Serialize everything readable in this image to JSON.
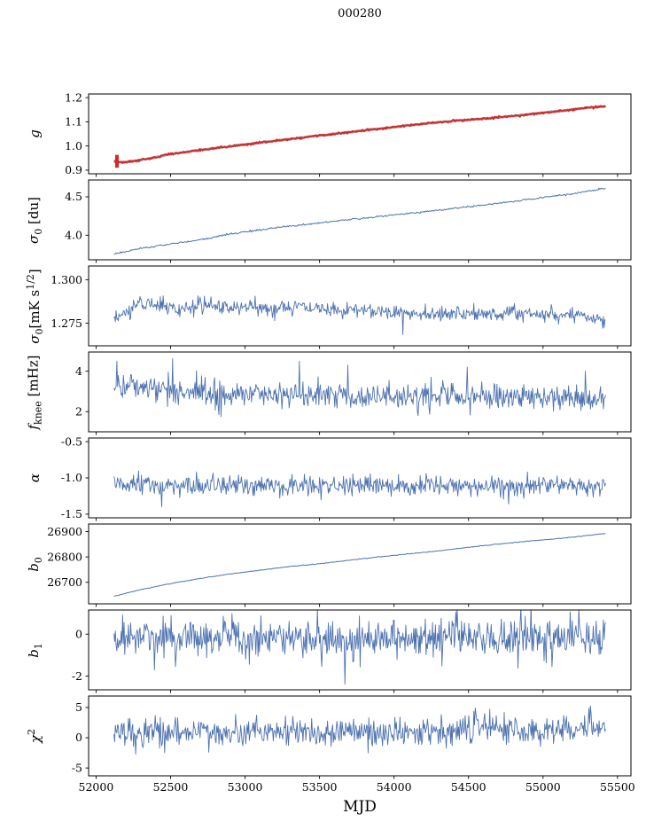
{
  "chart_data": {
    "type": "line",
    "title": "000280",
    "xlabel": "MJD",
    "xlim": [
      51950,
      55590
    ],
    "xticks": [
      52000,
      52500,
      53000,
      53500,
      54000,
      54500,
      55000,
      55500
    ],
    "x_data_range": [
      52120,
      55420
    ],
    "line_color": "#4c72b0",
    "accent_color": "#d62728",
    "panels": [
      {
        "name": "g",
        "ylabel": "*g*",
        "ylim": [
          0.885,
          1.215
        ],
        "yticks": [
          0.9,
          1.0,
          1.1,
          1.2
        ],
        "ytick_labels": [
          "0.9",
          "1.0",
          "1.1",
          "1.2"
        ],
        "errorbar": {
          "x": 52140,
          "y0": 0.91,
          "y1": 0.963,
          "color": "#d62728",
          "width": 4
        },
        "series": [
          {
            "name": "gain-model",
            "color": "#9a9a9a",
            "width": 2.8,
            "n": 450,
            "noise_sigma": 0.0008,
            "seed": 11,
            "trend": [
              [
                52120,
                0.936
              ],
              [
                52180,
                0.932
              ],
              [
                52260,
                0.938
              ],
              [
                52400,
                0.953
              ],
              [
                52500,
                0.967
              ],
              [
                52650,
                0.979
              ],
              [
                52800,
                0.991
              ],
              [
                53000,
                1.006
              ],
              [
                53200,
                1.021
              ],
              [
                53400,
                1.036
              ],
              [
                53600,
                1.05
              ],
              [
                53800,
                1.064
              ],
              [
                54000,
                1.078
              ],
              [
                54200,
                1.092
              ],
              [
                54400,
                1.104
              ],
              [
                54600,
                1.113
              ],
              [
                54800,
                1.124
              ],
              [
                55000,
                1.137
              ],
              [
                55150,
                1.147
              ],
              [
                55300,
                1.158
              ],
              [
                55420,
                1.164
              ]
            ],
            "spikes": []
          },
          {
            "name": "gain-fit",
            "color": "#d62728",
            "width": 1.8,
            "n": 650,
            "noise_sigma": 0.0022,
            "seed": 12,
            "trend": [
              [
                52120,
                0.936
              ],
              [
                52180,
                0.932
              ],
              [
                52260,
                0.938
              ],
              [
                52400,
                0.953
              ],
              [
                52500,
                0.967
              ],
              [
                52650,
                0.979
              ],
              [
                52800,
                0.991
              ],
              [
                53000,
                1.006
              ],
              [
                53200,
                1.021
              ],
              [
                53400,
                1.036
              ],
              [
                53600,
                1.05
              ],
              [
                53800,
                1.064
              ],
              [
                54000,
                1.078
              ],
              [
                54200,
                1.092
              ],
              [
                54400,
                1.104
              ],
              [
                54600,
                1.113
              ],
              [
                54800,
                1.124
              ],
              [
                55000,
                1.137
              ],
              [
                55150,
                1.147
              ],
              [
                55300,
                1.158
              ],
              [
                55420,
                1.164
              ]
            ],
            "spikes": []
          }
        ]
      },
      {
        "name": "sigma0-du",
        "ylabel": "*σ*_{0} [du]",
        "ylim": [
          3.68,
          4.72
        ],
        "yticks": [
          4.0,
          4.5
        ],
        "ytick_labels": [
          "4.0",
          "4.5"
        ],
        "series": [
          {
            "name": "sigma0-du",
            "color": "#4c72b0",
            "width": 1.0,
            "n": 520,
            "noise_sigma": 0.006,
            "seed": 21,
            "trend": [
              [
                52120,
                3.757
              ],
              [
                52250,
                3.808
              ],
              [
                52400,
                3.858
              ],
              [
                52550,
                3.9
              ],
              [
                52700,
                3.94
              ],
              [
                52850,
                3.998
              ],
              [
                53000,
                4.045
              ],
              [
                53200,
                4.095
              ],
              [
                53400,
                4.14
              ],
              [
                53600,
                4.183
              ],
              [
                53800,
                4.225
              ],
              [
                54000,
                4.265
              ],
              [
                54200,
                4.305
              ],
              [
                54400,
                4.35
              ],
              [
                54600,
                4.392
              ],
              [
                54800,
                4.44
              ],
              [
                55000,
                4.492
              ],
              [
                55200,
                4.54
              ],
              [
                55420,
                4.61
              ]
            ],
            "spikes": []
          }
        ]
      },
      {
        "name": "sigma0-mk",
        "ylabel": "*σ*_{0}[mK s^{1/2}]",
        "ylim": [
          1.262,
          1.308
        ],
        "yticks": [
          1.275,
          1.3
        ],
        "ytick_labels": [
          "1.275",
          "1.300"
        ],
        "series": [
          {
            "name": "sigma0-mk",
            "color": "#4c72b0",
            "width": 0.9,
            "n": 680,
            "noise_sigma": 0.0022,
            "seed": 31,
            "trend": [
              [
                52120,
                1.277
              ],
              [
                52200,
                1.281
              ],
              [
                52280,
                1.286
              ],
              [
                52360,
                1.2875
              ],
              [
                52450,
                1.2845
              ],
              [
                52550,
                1.283
              ],
              [
                52700,
                1.2855
              ],
              [
                52850,
                1.284
              ],
              [
                53000,
                1.2845
              ],
              [
                53150,
                1.283
              ],
              [
                53300,
                1.285
              ],
              [
                53450,
                1.2835
              ],
              [
                53600,
                1.282
              ],
              [
                53800,
                1.2835
              ],
              [
                54000,
                1.2815
              ],
              [
                54200,
                1.2805
              ],
              [
                54400,
                1.281
              ],
              [
                54600,
                1.28
              ],
              [
                54800,
                1.281
              ],
              [
                55000,
                1.28
              ],
              [
                55200,
                1.2798
              ],
              [
                55350,
                1.279
              ],
              [
                55420,
                1.277
              ]
            ],
            "spikes": [
              [
                54060,
                1.2685
              ],
              [
                55400,
                1.272
              ]
            ]
          }
        ]
      },
      {
        "name": "fknee",
        "ylabel": "*f*_{knee} [mHz]",
        "ylim": [
          1.0,
          4.95
        ],
        "yticks": [
          2,
          4
        ],
        "ytick_labels": [
          "2",
          "4"
        ],
        "series": [
          {
            "name": "fknee",
            "color": "#4c72b0",
            "width": 0.9,
            "n": 680,
            "noise_sigma": 0.32,
            "seed": 41,
            "trend": [
              [
                52120,
                3.35
              ],
              [
                52250,
                3.28
              ],
              [
                52400,
                3.12
              ],
              [
                52600,
                3.0
              ],
              [
                52800,
                2.92
              ],
              [
                53000,
                2.87
              ],
              [
                53300,
                2.82
              ],
              [
                53600,
                2.8
              ],
              [
                54000,
                2.78
              ],
              [
                54400,
                2.76
              ],
              [
                54800,
                2.72
              ],
              [
                55100,
                2.68
              ],
              [
                55420,
                2.62
              ]
            ],
            "spikes": [
              [
                52140,
                4.5
              ],
              [
                52515,
                4.62
              ],
              [
                53365,
                4.5
              ],
              [
                53690,
                4.3
              ],
              [
                54490,
                4.2
              ],
              [
                55285,
                4.0
              ],
              [
                52840,
                1.75
              ],
              [
                54160,
                1.8
              ]
            ]
          }
        ]
      },
      {
        "name": "alpha",
        "ylabel": "*α*",
        "ylim": [
          -1.55,
          -0.45
        ],
        "yticks": [
          -1.5,
          -1.0,
          -0.5
        ],
        "ytick_labels": [
          "-1.5",
          "-1.0",
          "-0.5"
        ],
        "series": [
          {
            "name": "alpha",
            "color": "#4c72b0",
            "width": 0.9,
            "n": 680,
            "noise_sigma": 0.068,
            "seed": 51,
            "trend": [
              [
                52120,
                -1.1
              ],
              [
                53000,
                -1.115
              ],
              [
                54000,
                -1.12
              ],
              [
                55420,
                -1.115
              ]
            ],
            "spikes": [
              [
                52440,
                -1.4
              ],
              [
                54770,
                -1.36
              ]
            ]
          }
        ]
      },
      {
        "name": "b0",
        "ylabel": "*b*_{0}",
        "ylim": [
          26615,
          26930
        ],
        "yticks": [
          26700,
          26800,
          26900
        ],
        "ytick_labels": [
          "26700",
          "26800",
          "26900"
        ],
        "series": [
          {
            "name": "b0",
            "color": "#4c72b0",
            "width": 1.0,
            "n": 450,
            "noise_sigma": 0.7,
            "seed": 61,
            "trend": [
              [
                52120,
                26645
              ],
              [
                52300,
                26671
              ],
              [
                52500,
                26695
              ],
              [
                52700,
                26715
              ],
              [
                52900,
                26733
              ],
              [
                53100,
                26748
              ],
              [
                53300,
                26762
              ],
              [
                53500,
                26773
              ],
              [
                53700,
                26787
              ],
              [
                53900,
                26800
              ],
              [
                54100,
                26812
              ],
              [
                54300,
                26824
              ],
              [
                54500,
                26838
              ],
              [
                54700,
                26851
              ],
              [
                54900,
                26862
              ],
              [
                55100,
                26873
              ],
              [
                55250,
                26881
              ],
              [
                55420,
                26893
              ]
            ],
            "spikes": []
          }
        ]
      },
      {
        "name": "b1",
        "ylabel": "*b*_{1}",
        "ylim": [
          -2.65,
          1.15
        ],
        "yticks": [
          -2,
          0
        ],
        "ytick_labels": [
          "-2",
          "0"
        ],
        "series": [
          {
            "name": "b1",
            "color": "#4c72b0",
            "width": 0.9,
            "n": 680,
            "noise_sigma": 0.46,
            "seed": 71,
            "trend": [
              [
                52120,
                -0.15
              ],
              [
                53500,
                -0.18
              ],
              [
                55420,
                -0.15
              ]
            ],
            "spikes": [
              [
                53670,
                -2.38
              ],
              [
                52390,
                -1.7
              ],
              [
                54830,
                -1.62
              ],
              [
                55060,
                -1.55
              ]
            ]
          }
        ]
      },
      {
        "name": "chi2",
        "ylabel": "*χ*^{2}",
        "ylim": [
          -6.3,
          6.9
        ],
        "yticks": [
          -5,
          0,
          5
        ],
        "ytick_labels": [
          "-5",
          "0",
          "5"
        ],
        "series": [
          {
            "name": "chi2",
            "color": "#4c72b0",
            "width": 0.9,
            "n": 680,
            "noise_sigma": 1.15,
            "seed": 81,
            "trend": [
              [
                52120,
                0.85
              ],
              [
                52600,
                0.95
              ],
              [
                53000,
                1.0
              ],
              [
                53500,
                1.05
              ],
              [
                54000,
                1.0
              ],
              [
                54300,
                1.2
              ],
              [
                54600,
                1.55
              ],
              [
                54900,
                1.3
              ],
              [
                55150,
                1.4
              ],
              [
                55420,
                1.85
              ]
            ],
            "spikes": [
              [
                54640,
                4.7
              ],
              [
                55310,
                4.9
              ],
              [
                52265,
                -2.7
              ],
              [
                53825,
                -2.5
              ]
            ]
          }
        ]
      }
    ]
  }
}
